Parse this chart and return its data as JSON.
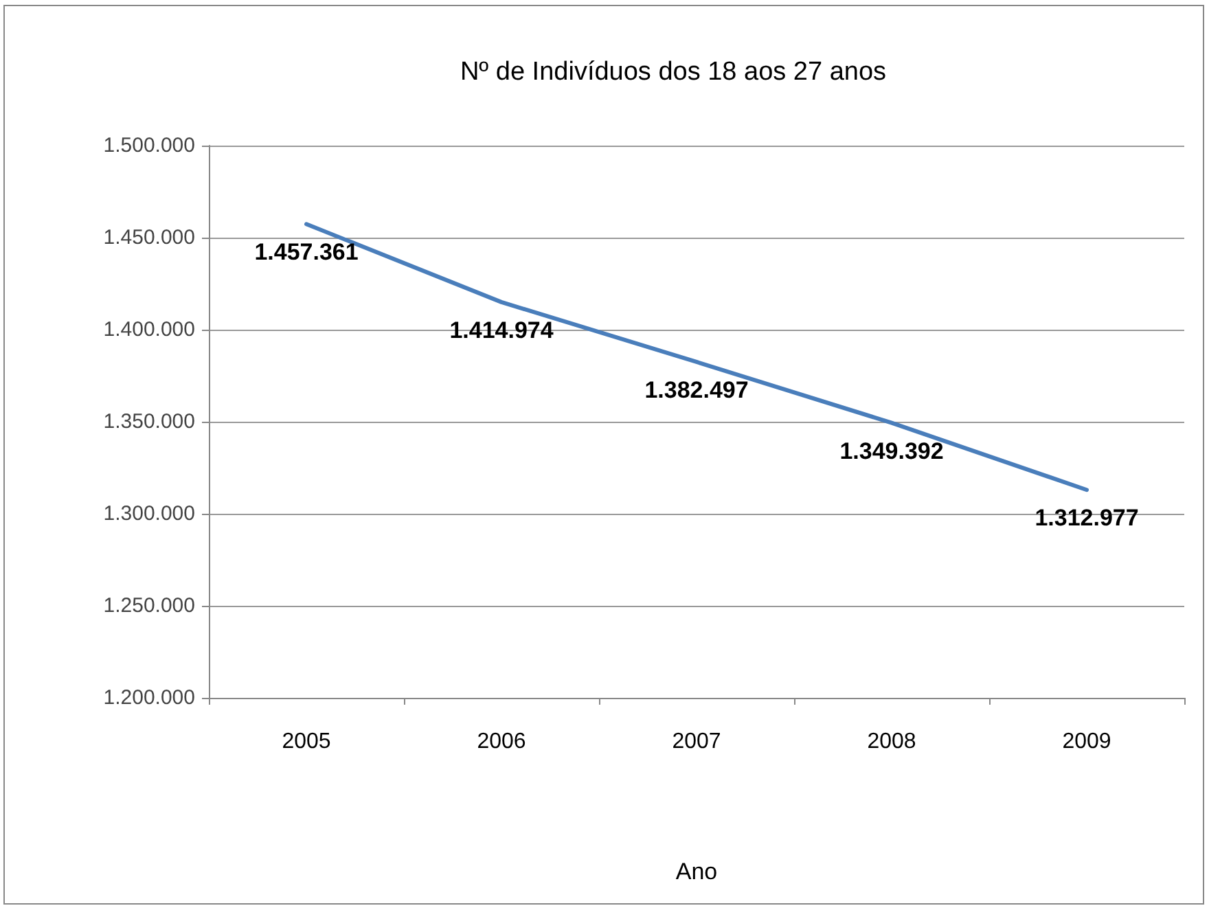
{
  "chart_data": {
    "type": "line",
    "title": "Nº de Indivíduos dos 18 aos 27 anos",
    "xlabel": "Ano",
    "categories": [
      "2005",
      "2006",
      "2007",
      "2008",
      "2009"
    ],
    "series": [
      {
        "color": "#4a7ebb",
        "values": [
          1457361,
          1414974,
          1382497,
          1349392,
          1312977
        ],
        "value_labels": [
          "1.457.361",
          "1.414.974",
          "1.382.497",
          "1.349.392",
          "1.312.977"
        ]
      }
    ],
    "ylim": [
      1200000,
      1500000
    ],
    "yticks": [
      {
        "value": 1200000,
        "label": "1.200.000"
      },
      {
        "value": 1250000,
        "label": "1.250.000"
      },
      {
        "value": 1300000,
        "label": "1.300.000"
      },
      {
        "value": 1350000,
        "label": "1.350.000"
      },
      {
        "value": 1400000,
        "label": "1.400.000"
      },
      {
        "value": 1450000,
        "label": "1.450.000"
      },
      {
        "value": 1500000,
        "label": "1.500.000"
      }
    ],
    "grid": "y",
    "marker": "none",
    "line_style": "solid"
  }
}
